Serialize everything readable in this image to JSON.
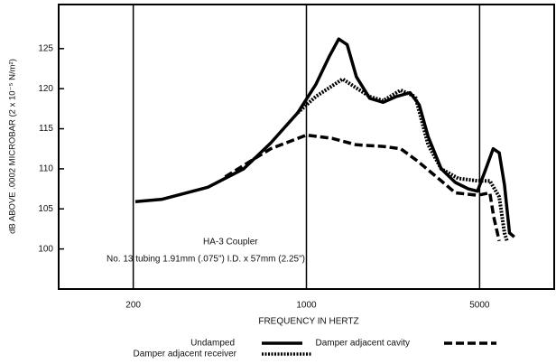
{
  "chart_data": {
    "type": "line",
    "xlabel": "FREQUENCY IN HERTZ",
    "ylabel": "dB ABOVE .0002 MICROBAR (2 x 10⁻⁵ N/m²)",
    "annotations": [
      "HA-3 Coupler",
      "No. 13 tubing 1.91mm (.075\") I.D. x 57mm (2.25\")"
    ],
    "xscale": "log",
    "xlim": [
      100,
      10000
    ],
    "xticks": [
      200,
      1000,
      5000
    ],
    "ylim": [
      95,
      130.5
    ],
    "yticks": [
      100,
      105,
      110,
      115,
      120,
      125
    ],
    "grid": true,
    "series": [
      {
        "name": "Undamped",
        "color": "#000000",
        "dash": "solid",
        "x": [
          204,
          262,
          400,
          558,
          717,
          923,
          1090,
          1235,
          1350,
          1460,
          1590,
          1800,
          2040,
          2300,
          2620,
          2850,
          3100,
          3500,
          3990,
          4500,
          4900,
          5300,
          5670,
          6000,
          6300,
          6600,
          6900
        ],
        "values": [
          105.9,
          106.2,
          107.7,
          110,
          113.2,
          117,
          120.5,
          124,
          126.2,
          125.5,
          121.5,
          118.8,
          118.3,
          119,
          119.5,
          118,
          114,
          110,
          108.3,
          107.5,
          107.2,
          110,
          112.5,
          112,
          108,
          102,
          101.5
        ]
      },
      {
        "name": "Damper adjacent cavity",
        "color": "#000000",
        "dash": "dashed",
        "x": [
          470,
          717,
          1000,
          1270,
          1590,
          2040,
          2400,
          2800,
          3500,
          3990,
          4900,
          5500,
          5700,
          6000
        ],
        "values": [
          109,
          112.5,
          114.2,
          113.8,
          113,
          112.8,
          112.5,
          111,
          108.5,
          107,
          106.7,
          107,
          104,
          101
        ]
      },
      {
        "name": "Damper adjacent receiver",
        "color": "#000000",
        "dash": "dotted",
        "x": [
          923,
          1090,
          1400,
          1800,
          2040,
          2400,
          2750,
          3100,
          3500,
          4100,
          4900,
          5500,
          6000,
          6300,
          6450
        ],
        "values": [
          117,
          119,
          121.2,
          119,
          118.5,
          119.8,
          119,
          113,
          110,
          108.8,
          108.5,
          108.5,
          106.5,
          102,
          101
        ]
      }
    ]
  }
}
